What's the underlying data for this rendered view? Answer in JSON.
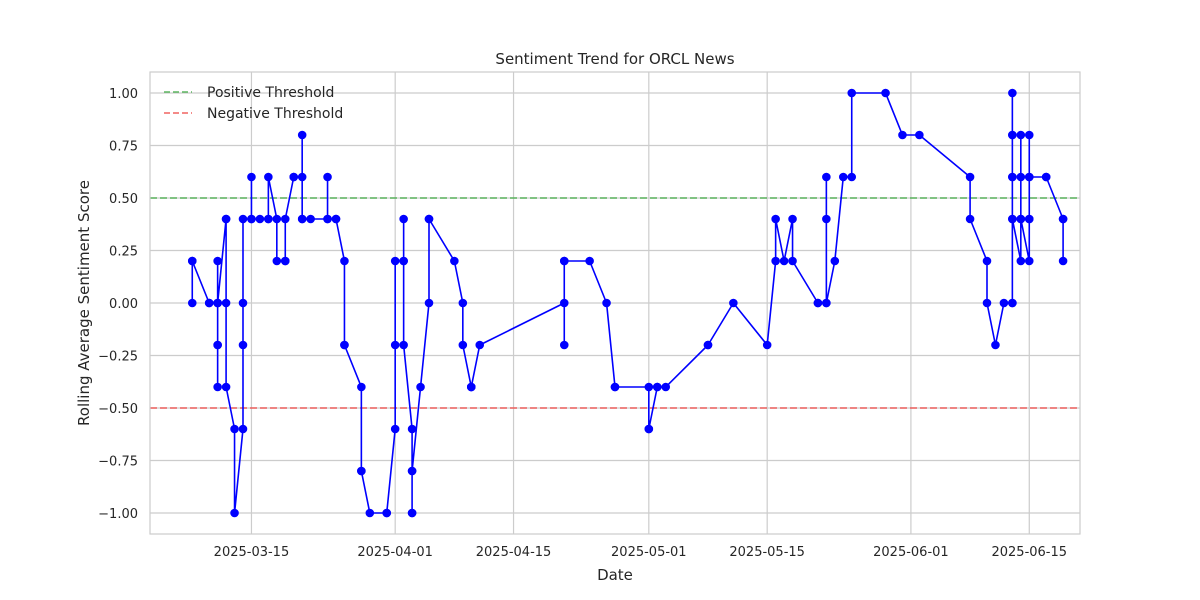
{
  "chart_data": {
    "type": "line",
    "title": "Sentiment Trend for ORCL News",
    "xlabel": "Date",
    "ylabel": "Rolling Average Sentiment Score",
    "xlim": [
      "2025-03-03",
      "2025-06-21"
    ],
    "ylim": [
      -1.1,
      1.1
    ],
    "x_ticks": [
      "2025-03-15",
      "2025-04-01",
      "2025-04-15",
      "2025-05-01",
      "2025-05-15",
      "2025-06-01",
      "2025-06-15"
    ],
    "y_ticks": [
      -1.0,
      -0.75,
      -0.5,
      -0.25,
      0.0,
      0.25,
      0.5,
      0.75,
      1.0
    ],
    "y_tick_labels": [
      "−1.00",
      "−0.75",
      "−0.50",
      "−0.25",
      "0.00",
      "0.25",
      "0.50",
      "0.75",
      "1.00"
    ],
    "grid": true,
    "legend_position": "top-left",
    "series": [
      {
        "kind": "line-markers",
        "color": "#0000ff",
        "points": [
          [
            "2025-03-08",
            0.2
          ],
          [
            "2025-03-08",
            0.0
          ],
          [
            "2025-03-08",
            0.2
          ],
          [
            "2025-03-10",
            0.0
          ],
          [
            "2025-03-10",
            0.0
          ],
          [
            "2025-03-11",
            0.0
          ],
          [
            "2025-03-11",
            -0.2
          ],
          [
            "2025-03-11",
            -0.4
          ],
          [
            "2025-03-11",
            -0.2
          ],
          [
            "2025-03-11",
            0.0
          ],
          [
            "2025-03-11",
            0.2
          ],
          [
            "2025-03-11",
            0.0
          ],
          [
            "2025-03-12",
            0.4
          ],
          [
            "2025-03-12",
            0.4
          ],
          [
            "2025-03-12",
            0.0
          ],
          [
            "2025-03-12",
            -0.4
          ],
          [
            "2025-03-13",
            -0.6
          ],
          [
            "2025-03-13",
            -1.0
          ],
          [
            "2025-03-14",
            -0.6
          ],
          [
            "2025-03-14",
            -0.2
          ],
          [
            "2025-03-14",
            0.0
          ],
          [
            "2025-03-14",
            0.4
          ],
          [
            "2025-03-15",
            0.4
          ],
          [
            "2025-03-15",
            0.6
          ],
          [
            "2025-03-15",
            0.4
          ],
          [
            "2025-03-16",
            0.4
          ],
          [
            "2025-03-17",
            0.4
          ],
          [
            "2025-03-17",
            0.4
          ],
          [
            "2025-03-17",
            0.6
          ],
          [
            "2025-03-18",
            0.4
          ],
          [
            "2025-03-18",
            0.2
          ],
          [
            "2025-03-19",
            0.2
          ],
          [
            "2025-03-19",
            0.2
          ],
          [
            "2025-03-19",
            0.4
          ],
          [
            "2025-03-20",
            0.6
          ],
          [
            "2025-03-20",
            0.6
          ],
          [
            "2025-03-21",
            0.6
          ],
          [
            "2025-03-21",
            0.8
          ],
          [
            "2025-03-21",
            0.4
          ],
          [
            "2025-03-21",
            0.4
          ],
          [
            "2025-03-22",
            0.4
          ],
          [
            "2025-03-24",
            0.4
          ],
          [
            "2025-03-24",
            0.6
          ],
          [
            "2025-03-24",
            0.4
          ],
          [
            "2025-03-25",
            0.4
          ],
          [
            "2025-03-25",
            0.4
          ],
          [
            "2025-03-26",
            0.2
          ],
          [
            "2025-03-26",
            -0.2
          ],
          [
            "2025-03-26",
            -0.2
          ],
          [
            "2025-03-28",
            -0.4
          ],
          [
            "2025-03-28",
            -0.8
          ],
          [
            "2025-03-28",
            -0.8
          ],
          [
            "2025-03-29",
            -1.0
          ],
          [
            "2025-03-31",
            -1.0
          ],
          [
            "2025-03-31",
            -1.0
          ],
          [
            "2025-04-01",
            -0.6
          ],
          [
            "2025-04-01",
            -0.2
          ],
          [
            "2025-04-01",
            0.2
          ],
          [
            "2025-04-02",
            0.2
          ],
          [
            "2025-04-02",
            0.4
          ],
          [
            "2025-04-02",
            0.2
          ],
          [
            "2025-04-02",
            -0.2
          ],
          [
            "2025-04-03",
            -0.6
          ],
          [
            "2025-04-03",
            -1.0
          ],
          [
            "2025-04-03",
            -0.8
          ],
          [
            "2025-04-03",
            -1.0
          ],
          [
            "2025-04-03",
            -0.8
          ],
          [
            "2025-04-04",
            -0.4
          ],
          [
            "2025-04-05",
            0.0
          ],
          [
            "2025-04-05",
            0.4
          ],
          [
            "2025-04-05",
            0.4
          ],
          [
            "2025-04-08",
            0.2
          ],
          [
            "2025-04-09",
            0.0
          ],
          [
            "2025-04-09",
            -0.2
          ],
          [
            "2025-04-10",
            -0.4
          ],
          [
            "2025-04-10",
            -0.4
          ],
          [
            "2025-04-10",
            -0.4
          ],
          [
            "2025-04-11",
            -0.2
          ],
          [
            "2025-04-21",
            0.0
          ],
          [
            "2025-04-21",
            -0.2
          ],
          [
            "2025-04-21",
            0.2
          ],
          [
            "2025-04-21",
            0.2
          ],
          [
            "2025-04-24",
            0.2
          ],
          [
            "2025-04-26",
            0.0
          ],
          [
            "2025-04-27",
            -0.4
          ],
          [
            "2025-04-27",
            -0.4
          ],
          [
            "2025-05-01",
            -0.4
          ],
          [
            "2025-05-01",
            -0.6
          ],
          [
            "2025-05-01",
            -0.6
          ],
          [
            "2025-05-02",
            -0.4
          ],
          [
            "2025-05-02",
            -0.4
          ],
          [
            "2025-05-03",
            -0.4
          ],
          [
            "2025-05-08",
            -0.2
          ],
          [
            "2025-05-08",
            -0.2
          ],
          [
            "2025-05-11",
            0.0
          ],
          [
            "2025-05-15",
            -0.2
          ],
          [
            "2025-05-16",
            0.2
          ],
          [
            "2025-05-16",
            0.4
          ],
          [
            "2025-05-17",
            0.2
          ],
          [
            "2025-05-18",
            0.4
          ],
          [
            "2025-05-18",
            0.2
          ],
          [
            "2025-05-21",
            0.0
          ],
          [
            "2025-05-21",
            0.0
          ],
          [
            "2025-05-22",
            0.0
          ],
          [
            "2025-05-22",
            0.4
          ],
          [
            "2025-05-22",
            0.6
          ],
          [
            "2025-05-22",
            0.0
          ],
          [
            "2025-05-23",
            0.2
          ],
          [
            "2025-05-24",
            0.6
          ],
          [
            "2025-05-25",
            0.6
          ],
          [
            "2025-05-25",
            1.0
          ],
          [
            "2025-05-29",
            1.0
          ],
          [
            "2025-05-31",
            0.8
          ],
          [
            "2025-06-02",
            0.8
          ],
          [
            "2025-06-08",
            0.6
          ],
          [
            "2025-06-08",
            0.4
          ],
          [
            "2025-06-10",
            0.2
          ],
          [
            "2025-06-10",
            0.0
          ],
          [
            "2025-06-11",
            -0.2
          ],
          [
            "2025-06-12",
            0.0
          ],
          [
            "2025-06-13",
            0.0
          ],
          [
            "2025-06-13",
            0.0
          ],
          [
            "2025-06-13",
            0.4
          ],
          [
            "2025-06-13",
            0.6
          ],
          [
            "2025-06-13",
            0.8
          ],
          [
            "2025-06-13",
            1.0
          ],
          [
            "2025-06-13",
            0.6
          ],
          [
            "2025-06-13",
            0.8
          ],
          [
            "2025-06-13",
            0.4
          ],
          [
            "2025-06-14",
            0.2
          ],
          [
            "2025-06-14",
            0.8
          ],
          [
            "2025-06-14",
            0.6
          ],
          [
            "2025-06-14",
            0.4
          ],
          [
            "2025-06-14",
            0.4
          ],
          [
            "2025-06-15",
            0.2
          ],
          [
            "2025-06-15",
            0.4
          ],
          [
            "2025-06-15",
            0.6
          ],
          [
            "2025-06-15",
            0.8
          ],
          [
            "2025-06-15",
            0.4
          ],
          [
            "2025-06-15",
            0.6
          ],
          [
            "2025-06-17",
            0.6
          ],
          [
            "2025-06-17",
            0.6
          ],
          [
            "2025-06-19",
            0.4
          ],
          [
            "2025-06-19",
            0.2
          ],
          [
            "2025-06-19",
            0.4
          ]
        ]
      },
      {
        "name": "Positive Threshold",
        "kind": "hline",
        "y": 0.5,
        "color": "#4caf50",
        "style": "dashed"
      },
      {
        "name": "Negative Threshold",
        "kind": "hline",
        "y": -0.5,
        "color": "#ef5350",
        "style": "dashed"
      }
    ]
  }
}
